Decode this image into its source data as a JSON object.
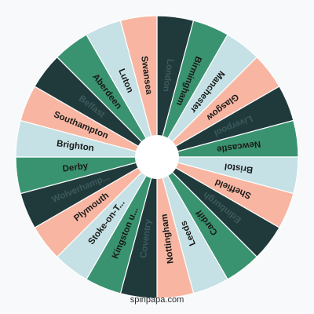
{
  "wheel": {
    "start_label": "London",
    "segments": [
      {
        "label": "London",
        "color": "#203a3c",
        "text_color": "#3c5a5c"
      },
      {
        "label": "Birmingham",
        "color": "#3a9370",
        "text_color": "#1a1a1a"
      },
      {
        "label": "Manchester",
        "color": "#c5e1e5",
        "text_color": "#1a1a1a"
      },
      {
        "label": "Glasgow",
        "color": "#f8b6a2",
        "text_color": "#1a1a1a"
      },
      {
        "label": "Liverpool",
        "color": "#203a3c",
        "text_color": "#3c5a5c"
      },
      {
        "label": "Newcastle",
        "color": "#3a9370",
        "text_color": "#1a1a1a"
      },
      {
        "label": "Bristol",
        "color": "#c5e1e5",
        "text_color": "#1a1a1a"
      },
      {
        "label": "Sheffield",
        "color": "#f8b6a2",
        "text_color": "#1a1a1a"
      },
      {
        "label": "Edinburgh",
        "color": "#203a3c",
        "text_color": "#3c5a5c"
      },
      {
        "label": "Cardiff",
        "color": "#3a9370",
        "text_color": "#1a1a1a"
      },
      {
        "label": "Leeds",
        "color": "#c5e1e5",
        "text_color": "#1a1a1a"
      },
      {
        "label": "Nottingham",
        "color": "#f8b6a2",
        "text_color": "#1a1a1a"
      },
      {
        "label": "Coventry",
        "color": "#203a3c",
        "text_color": "#3c5a5c"
      },
      {
        "label": "Kingston u...",
        "color": "#3a9370",
        "text_color": "#1a1a1a"
      },
      {
        "label": "Stoke-on-T...",
        "color": "#c5e1e5",
        "text_color": "#1a1a1a"
      },
      {
        "label": "Plymouth",
        "color": "#f8b6a2",
        "text_color": "#1a1a1a"
      },
      {
        "label": "Wolverhamp...",
        "color": "#203a3c",
        "text_color": "#3c5a5c"
      },
      {
        "label": "Derby",
        "color": "#3a9370",
        "text_color": "#1a1a1a"
      },
      {
        "label": "Brighton",
        "color": "#c5e1e5",
        "text_color": "#1a1a1a"
      },
      {
        "label": "Southampton",
        "color": "#f8b6a2",
        "text_color": "#1a1a1a"
      },
      {
        "label": "Belfast",
        "color": "#203a3c",
        "text_color": "#3c5a5c"
      },
      {
        "label": "Aberdeen",
        "color": "#3a9370",
        "text_color": "#1a1a1a"
      },
      {
        "label": "Luton",
        "color": "#c5e1e5",
        "text_color": "#1a1a1a"
      },
      {
        "label": "Swansea",
        "color": "#f8b6a2",
        "text_color": "#1a1a1a"
      }
    ]
  },
  "footer": {
    "watermark": "spinpapa.com"
  }
}
